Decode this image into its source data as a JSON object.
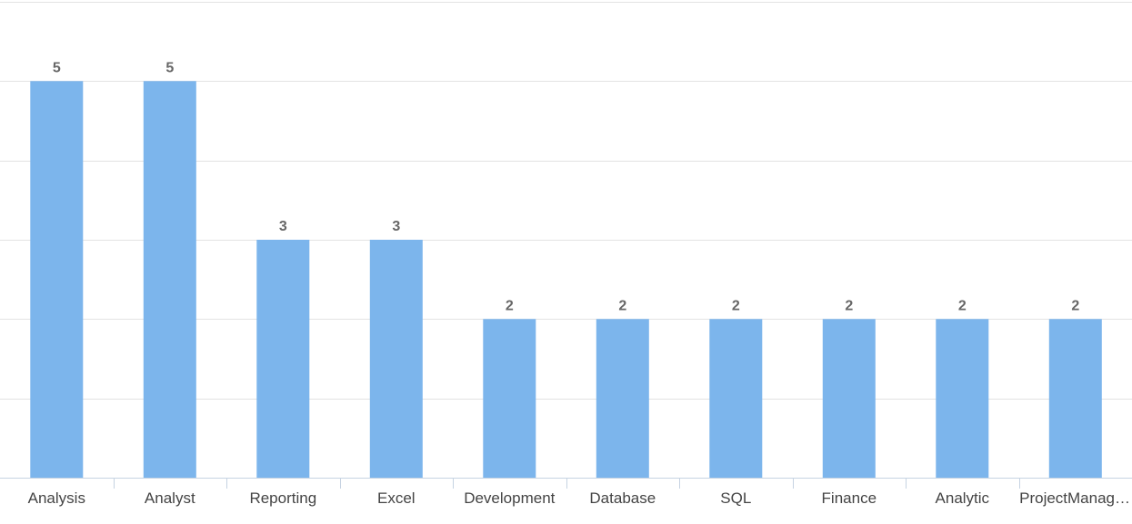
{
  "colors": {
    "bar": "#7cb5ec",
    "grid": "#e3e3e3",
    "axis": "#c6d3e2",
    "label": "#666666",
    "tick_label": "#444444"
  },
  "chart_data": {
    "type": "bar",
    "title": "",
    "xlabel": "",
    "ylabel": "",
    "categories": [
      "Analysis",
      "Analyst",
      "Reporting",
      "Excel",
      "Development",
      "Database",
      "SQL",
      "Finance",
      "Analytic",
      "ProjectManag…"
    ],
    "values": [
      5,
      5,
      3,
      3,
      2,
      2,
      2,
      2,
      2,
      2
    ],
    "ylim": [
      0,
      6
    ],
    "y_gridlines": [
      0,
      1,
      2,
      3,
      4,
      5,
      6
    ],
    "y_tick_labels_visible": false,
    "grid": true,
    "legend": "none",
    "data_labels": true
  }
}
